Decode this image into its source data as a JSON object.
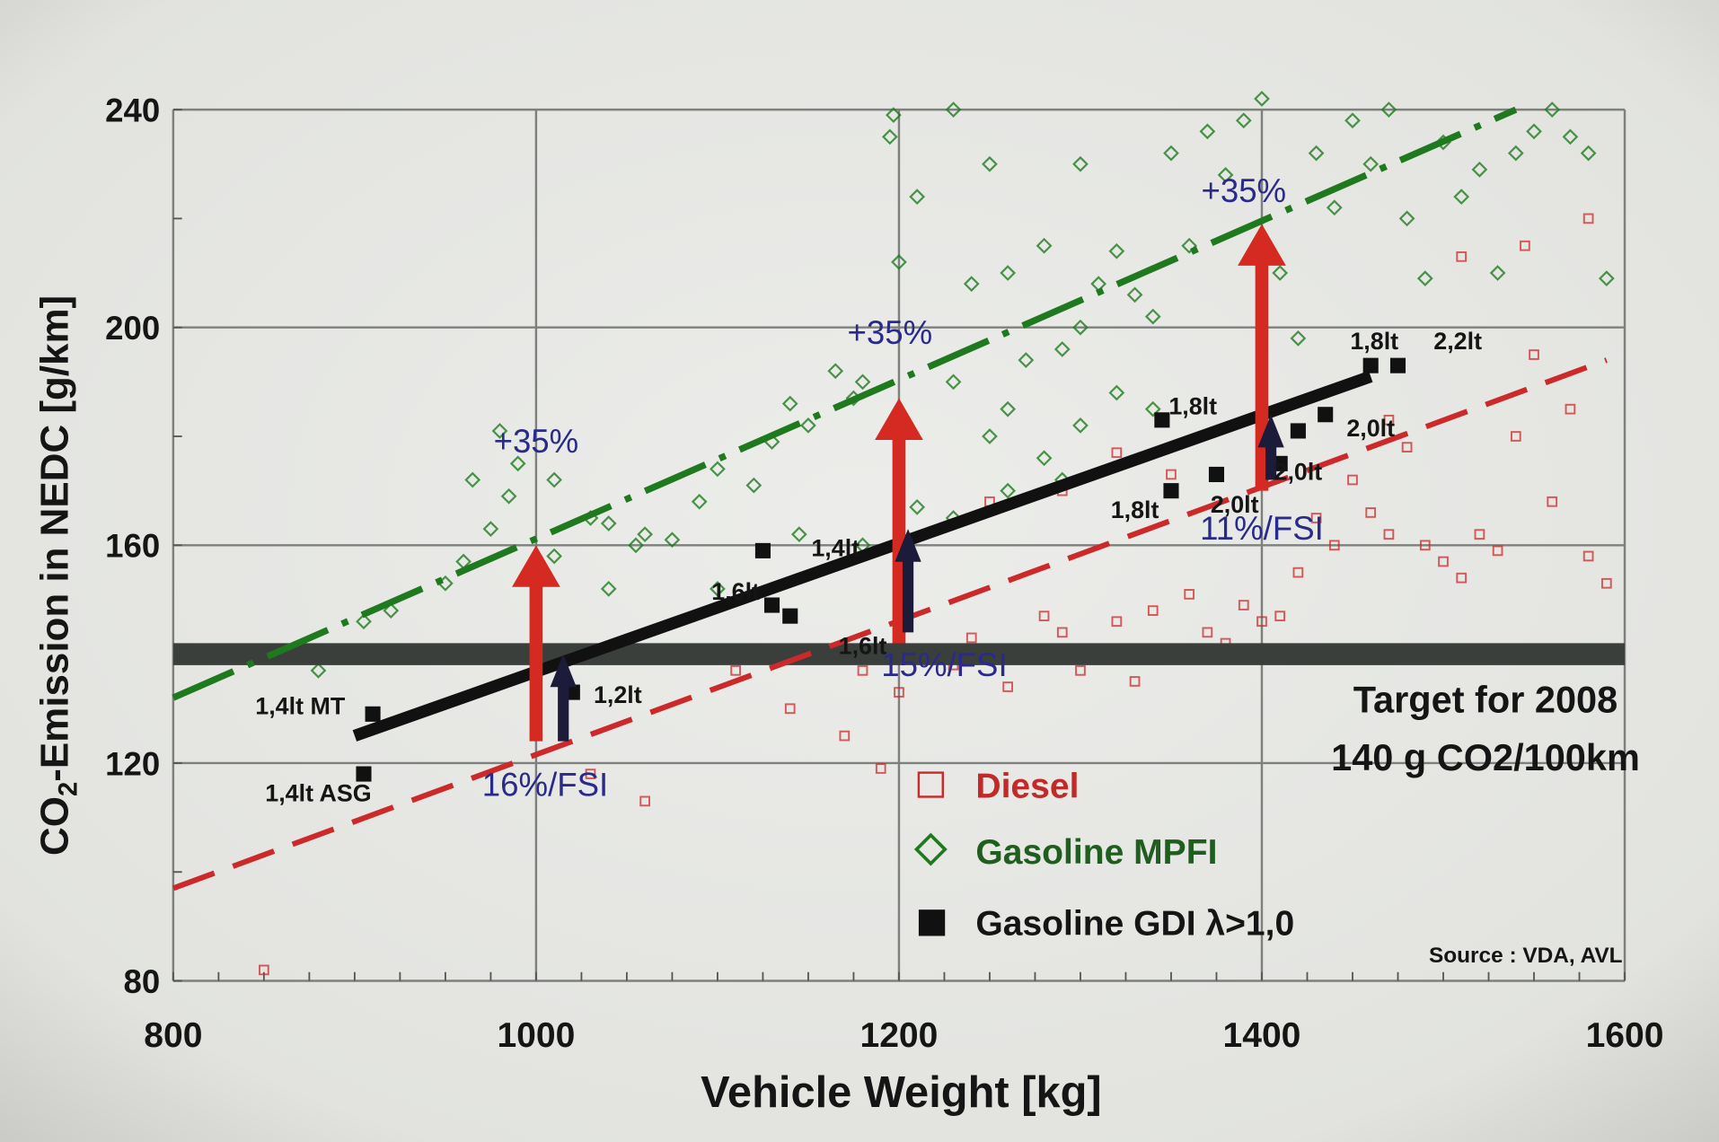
{
  "chart_data": {
    "type": "scatter",
    "xlabel": "Vehicle Weight [kg]",
    "ylabel": "CO2-Emission in NEDC [g/km]",
    "xlim": [
      800,
      1600
    ],
    "ylim": [
      80,
      240
    ],
    "xticks": [
      "800",
      "1000",
      "1200",
      "1400",
      "1600"
    ],
    "yticks": [
      "80",
      "120",
      "160",
      "200",
      "240"
    ],
    "grid": true,
    "legend_placement": "bottom-center",
    "colors": {
      "diesel": "#cc2a2a",
      "mpfi": "#1f7a1f",
      "gdi": "#111111",
      "annotation": "#2a2a8a",
      "arrow": "#d42a22",
      "target": "#3a3f3c"
    },
    "series": [
      {
        "name": "Diesel",
        "marker": "open-square",
        "color": "#cc2a2a",
        "points": [
          [
            850,
            82
          ],
          [
            1030,
            118
          ],
          [
            1060,
            113
          ],
          [
            1110,
            137
          ],
          [
            1140,
            130
          ],
          [
            1170,
            125
          ],
          [
            1180,
            137
          ],
          [
            1190,
            119
          ],
          [
            1200,
            133
          ],
          [
            1230,
            138
          ],
          [
            1240,
            143
          ],
          [
            1260,
            134
          ],
          [
            1270,
            140
          ],
          [
            1280,
            147
          ],
          [
            1290,
            144
          ],
          [
            1300,
            137
          ],
          [
            1310,
            141
          ],
          [
            1320,
            146
          ],
          [
            1330,
            135
          ],
          [
            1340,
            148
          ],
          [
            1350,
            140
          ],
          [
            1360,
            151
          ],
          [
            1370,
            144
          ],
          [
            1380,
            142
          ],
          [
            1390,
            149
          ],
          [
            1400,
            146
          ],
          [
            1410,
            147
          ],
          [
            1420,
            155
          ],
          [
            1430,
            165
          ],
          [
            1440,
            160
          ],
          [
            1450,
            172
          ],
          [
            1460,
            166
          ],
          [
            1470,
            183
          ],
          [
            1480,
            178
          ],
          [
            1490,
            160
          ],
          [
            1500,
            157
          ],
          [
            1510,
            154
          ],
          [
            1520,
            162
          ],
          [
            1530,
            159
          ],
          [
            1540,
            180
          ],
          [
            1550,
            195
          ],
          [
            1560,
            168
          ],
          [
            1570,
            185
          ],
          [
            1580,
            158
          ],
          [
            1590,
            153
          ],
          [
            1545,
            215
          ],
          [
            1580,
            220
          ],
          [
            1510,
            213
          ],
          [
            1290,
            170
          ],
          [
            1250,
            168
          ],
          [
            1350,
            173
          ],
          [
            1400,
            140
          ],
          [
            1470,
            162
          ],
          [
            1320,
            177
          ]
        ]
      },
      {
        "name": "Gasoline MPFI",
        "marker": "open-diamond",
        "color": "#1f7a1f",
        "points": [
          [
            880,
            137
          ],
          [
            905,
            146
          ],
          [
            920,
            148
          ],
          [
            950,
            153
          ],
          [
            960,
            157
          ],
          [
            975,
            163
          ],
          [
            985,
            169
          ],
          [
            980,
            181
          ],
          [
            965,
            172
          ],
          [
            990,
            175
          ],
          [
            1010,
            158
          ],
          [
            1030,
            165
          ],
          [
            1040,
            164
          ],
          [
            1055,
            160
          ],
          [
            1060,
            162
          ],
          [
            1075,
            161
          ],
          [
            1090,
            168
          ],
          [
            1100,
            174
          ],
          [
            1120,
            171
          ],
          [
            1130,
            179
          ],
          [
            1140,
            186
          ],
          [
            1150,
            182
          ],
          [
            1165,
            192
          ],
          [
            1175,
            187
          ],
          [
            1180,
            190
          ],
          [
            1195,
            235
          ],
          [
            1197,
            239
          ],
          [
            1200,
            212
          ],
          [
            1210,
            224
          ],
          [
            1230,
            190
          ],
          [
            1240,
            208
          ],
          [
            1250,
            230
          ],
          [
            1260,
            210
          ],
          [
            1270,
            194
          ],
          [
            1280,
            215
          ],
          [
            1290,
            196
          ],
          [
            1300,
            200
          ],
          [
            1310,
            208
          ],
          [
            1320,
            214
          ],
          [
            1330,
            206
          ],
          [
            1340,
            202
          ],
          [
            1350,
            232
          ],
          [
            1360,
            215
          ],
          [
            1370,
            236
          ],
          [
            1380,
            228
          ],
          [
            1390,
            238
          ],
          [
            1400,
            242
          ],
          [
            1410,
            210
          ],
          [
            1420,
            198
          ],
          [
            1430,
            232
          ],
          [
            1440,
            222
          ],
          [
            1450,
            238
          ],
          [
            1460,
            230
          ],
          [
            1470,
            240
          ],
          [
            1480,
            220
          ],
          [
            1490,
            209
          ],
          [
            1500,
            234
          ],
          [
            1510,
            224
          ],
          [
            1520,
            229
          ],
          [
            1530,
            210
          ],
          [
            1540,
            232
          ],
          [
            1550,
            236
          ],
          [
            1560,
            240
          ],
          [
            1570,
            235
          ],
          [
            1580,
            232
          ],
          [
            1590,
            209
          ],
          [
            1250,
            180
          ],
          [
            1260,
            185
          ],
          [
            1280,
            176
          ],
          [
            1300,
            182
          ],
          [
            1320,
            188
          ],
          [
            1340,
            185
          ],
          [
            1210,
            167
          ],
          [
            1230,
            165
          ],
          [
            1260,
            170
          ],
          [
            1290,
            172
          ],
          [
            1145,
            162
          ],
          [
            1180,
            160
          ],
          [
            1200,
            160
          ],
          [
            1040,
            152
          ],
          [
            1010,
            172
          ],
          [
            1100,
            152
          ],
          [
            1300,
            230
          ],
          [
            1230,
            240
          ]
        ]
      },
      {
        "name": "Gasoline GDI λ>1,0",
        "marker": "filled-square",
        "color": "#111111",
        "points": [
          [
            910,
            129
          ],
          [
            905,
            118
          ],
          [
            1020,
            133
          ],
          [
            1125,
            159
          ],
          [
            1130,
            149
          ],
          [
            1140,
            147
          ],
          [
            1345,
            183
          ],
          [
            1350,
            170
          ],
          [
            1375,
            173
          ],
          [
            1410,
            175
          ],
          [
            1420,
            181
          ],
          [
            1435,
            184
          ],
          [
            1460,
            193
          ],
          [
            1475,
            193
          ]
        ]
      }
    ],
    "trend_lines": [
      {
        "series": "Gasoline MPFI",
        "style": "dash-dot",
        "from": [
          800,
          132
        ],
        "to": [
          1540,
          240
        ]
      },
      {
        "series": "Diesel",
        "style": "dashed",
        "from": [
          800,
          97
        ],
        "to": [
          1590,
          194
        ]
      },
      {
        "series": "Gasoline GDI λ>1,0",
        "style": "solid",
        "from": [
          900,
          125
        ],
        "to": [
          1460,
          191
        ]
      }
    ],
    "target_line": {
      "y": 140,
      "from": 800,
      "to": 1600
    },
    "red_arrows": [
      {
        "x": 1000,
        "from": 124,
        "to": 160
      },
      {
        "x": 1200,
        "from": 142,
        "to": 187
      },
      {
        "x": 1400,
        "from": 170,
        "to": 219
      }
    ],
    "dark_arrows": [
      {
        "x": 1015,
        "from": 124,
        "to": 140
      },
      {
        "x": 1205,
        "from": 144,
        "to": 163
      },
      {
        "x": 1405,
        "from": 172,
        "to": 184
      }
    ],
    "annotations": [
      {
        "text": "+35%",
        "x": 1000,
        "y": 177,
        "kind": "blue"
      },
      {
        "text": "+35%",
        "x": 1195,
        "y": 197,
        "kind": "blue"
      },
      {
        "text": "+35%",
        "x": 1390,
        "y": 223,
        "kind": "blue"
      },
      {
        "text": "16%/FSI",
        "x": 1005,
        "y": 114,
        "kind": "blue"
      },
      {
        "text": "15%/FSI",
        "x": 1225,
        "y": 136,
        "kind": "blue"
      },
      {
        "text": "11%/FSI",
        "x": 1400,
        "y": 161,
        "kind": "blue"
      },
      {
        "text": "1,4lt MT",
        "x": 870,
        "y": 129,
        "kind": "label"
      },
      {
        "text": "1,4lt ASG",
        "x": 880,
        "y": 113,
        "kind": "label"
      },
      {
        "text": "1,2lt",
        "x": 1045,
        "y": 131,
        "kind": "label"
      },
      {
        "text": "1,6lt",
        "x": 1110,
        "y": 150,
        "kind": "label"
      },
      {
        "text": "1,4lt",
        "x": 1165,
        "y": 158,
        "kind": "label"
      },
      {
        "text": "1,6lt",
        "x": 1180,
        "y": 140,
        "kind": "label"
      },
      {
        "text": "1,8lt",
        "x": 1362,
        "y": 184,
        "kind": "label"
      },
      {
        "text": "1,8lt",
        "x": 1330,
        "y": 165,
        "kind": "label"
      },
      {
        "text": "2,0lt",
        "x": 1385,
        "y": 166,
        "kind": "label"
      },
      {
        "text": "2,0lt",
        "x": 1420,
        "y": 172,
        "kind": "label"
      },
      {
        "text": "2,0lt",
        "x": 1460,
        "y": 180,
        "kind": "label"
      },
      {
        "text": "1,8lt",
        "x": 1462,
        "y": 196,
        "kind": "label"
      },
      {
        "text": "2,2lt",
        "x": 1508,
        "y": 196,
        "kind": "label"
      }
    ],
    "target_text": [
      "Target for 2008",
      "140 g CO2/100km"
    ],
    "source": "Source : VDA, AVL"
  }
}
